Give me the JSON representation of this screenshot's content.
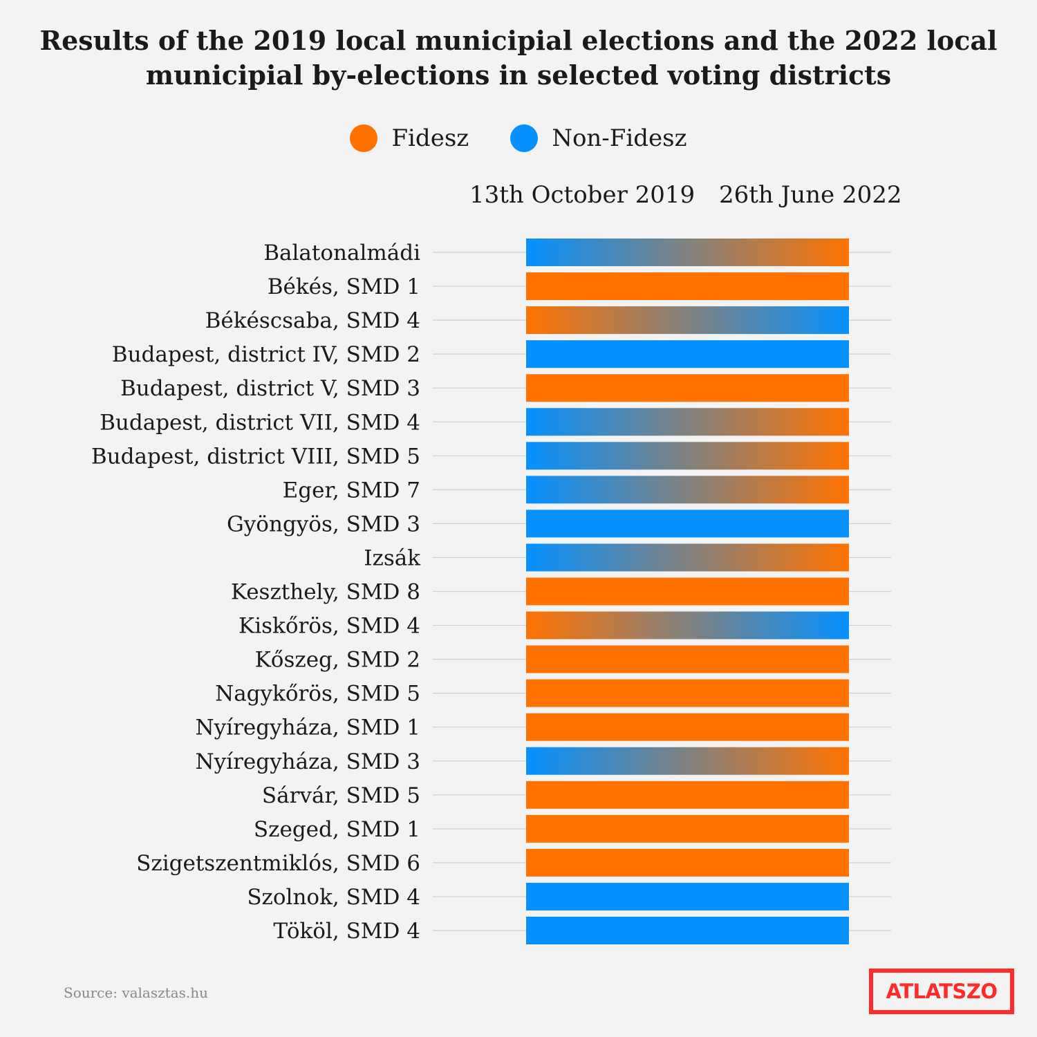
{
  "title_lines": [
    "Results of the 2019 local municipial elections and the 2022 local",
    "municipial by-elections in selected voting districts"
  ],
  "legend": [
    {
      "label": "Fidesz",
      "color": "#ff7200"
    },
    {
      "label": "Non-Fidesz",
      "color": "#0591ff"
    }
  ],
  "columns": {
    "left": "13th October 2019",
    "right": "26th June 2022"
  },
  "source": "Source: valasztas.hu",
  "logo": "ATLATSZO",
  "chart_data": {
    "type": "table",
    "x": [
      "13th October 2019",
      "26th June 2022"
    ],
    "categories": [
      "Balatonalmádi",
      "Békés, SMD 1",
      "Békéscsaba, SMD 4",
      "Budapest, district IV, SMD 2",
      "Budapest, district V, SMD 3",
      "Budapest, district VII, SMD 4",
      "Budapest, district VIII, SMD 5",
      "Eger, SMD 7",
      "Gyöngyös, SMD 3",
      "Izsák",
      "Keszthely, SMD 8",
      "Kiskőrös, SMD 4",
      "Kőszeg, SMD 2",
      "Nagykőrös, SMD 5",
      "Nyíregyháza, SMD 1",
      "Nyíregyháza, SMD 3",
      "Sárvár, SMD 5",
      "Szeged, SMD 1",
      "Szigetszentmiklós, SMD 6",
      "Szolnok, SMD 4",
      "Tököl, SMD 4"
    ],
    "series": [
      {
        "name": "13th October 2019",
        "values": [
          "Non-Fidesz",
          "Fidesz",
          "Fidesz",
          "Non-Fidesz",
          "Fidesz",
          "Non-Fidesz",
          "Non-Fidesz",
          "Non-Fidesz",
          "Non-Fidesz",
          "Non-Fidesz",
          "Fidesz",
          "Fidesz",
          "Fidesz",
          "Fidesz",
          "Fidesz",
          "Non-Fidesz",
          "Fidesz",
          "Fidesz",
          "Fidesz",
          "Non-Fidesz",
          "Non-Fidesz"
        ]
      },
      {
        "name": "26th June 2022",
        "values": [
          "Fidesz",
          "Fidesz",
          "Non-Fidesz",
          "Non-Fidesz",
          "Fidesz",
          "Fidesz",
          "Fidesz",
          "Fidesz",
          "Non-Fidesz",
          "Fidesz",
          "Fidesz",
          "Non-Fidesz",
          "Fidesz",
          "Fidesz",
          "Fidesz",
          "Fidesz",
          "Fidesz",
          "Fidesz",
          "Fidesz",
          "Non-Fidesz",
          "Non-Fidesz"
        ]
      }
    ],
    "colors": {
      "Fidesz": "#ff7200",
      "Non-Fidesz": "#0591ff",
      "gridline": "#cfcfcf"
    }
  }
}
